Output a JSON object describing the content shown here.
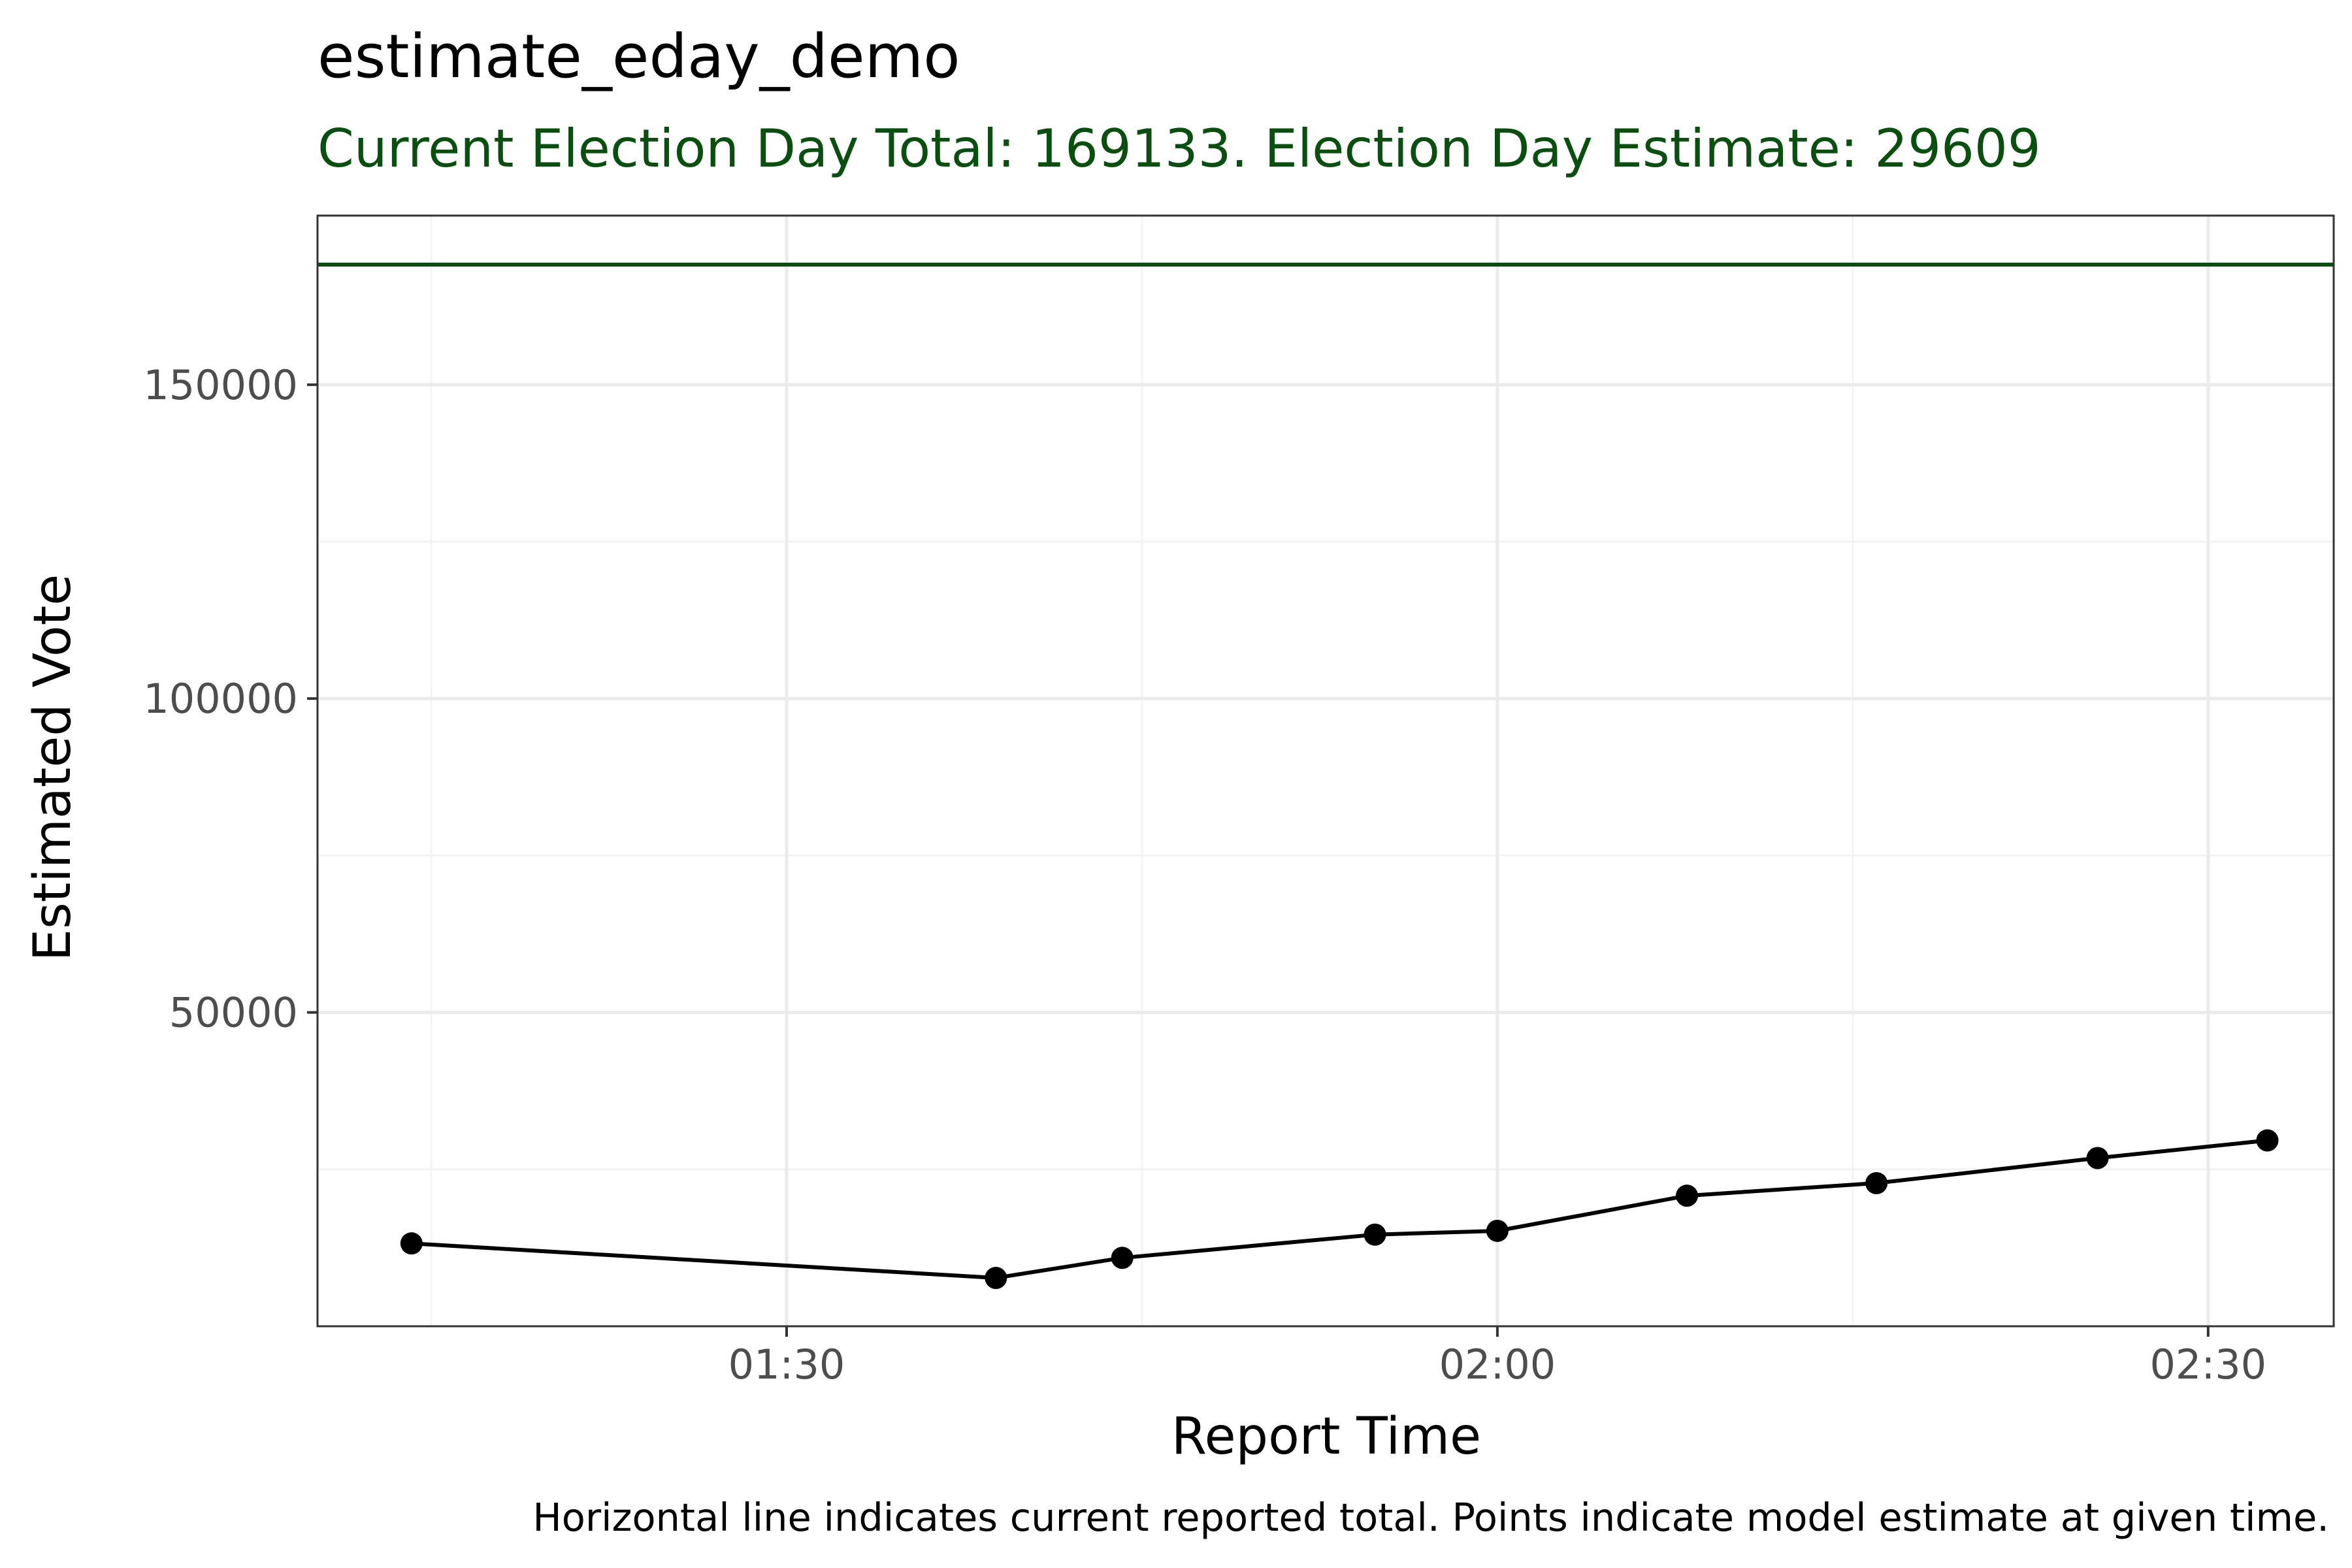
{
  "chart_data": {
    "type": "line",
    "title": "estimate_eday_demo",
    "subtitle": "Current Election Day Total: 169133. Election Day Estimate: 29609",
    "xlabel": "Report Time",
    "ylabel": "Estimated Vote",
    "caption": "Horizontal line indicates current reported total. Points indicate model estimate at given time.",
    "x_ticks": [
      "01:30",
      "02:00",
      "02:30"
    ],
    "y_ticks": [
      "50000",
      "100000",
      "150000"
    ],
    "xlim": [
      "01:10:12",
      "02:35:18"
    ],
    "ylim": [
      0,
      169133
    ],
    "reference_line": {
      "y": 169133,
      "color": "#0b4f10"
    },
    "series": [
      {
        "x": [
          "01:14:10",
          "01:38:50",
          "01:44:10",
          "01:54:50",
          "02:00:00",
          "02:08:00",
          "02:16:00",
          "02:25:20",
          "02:32:30"
        ],
        "y": [
          13200,
          7700,
          10900,
          14600,
          15200,
          20800,
          22800,
          26800,
          29609
        ],
        "color": "#000000"
      }
    ],
    "grid": true,
    "colors": {
      "subtitle": "#0b4f10",
      "panel_border": "#333333",
      "grid_major": "#ebebeb",
      "grid_minor": "#f3f3f3"
    }
  }
}
